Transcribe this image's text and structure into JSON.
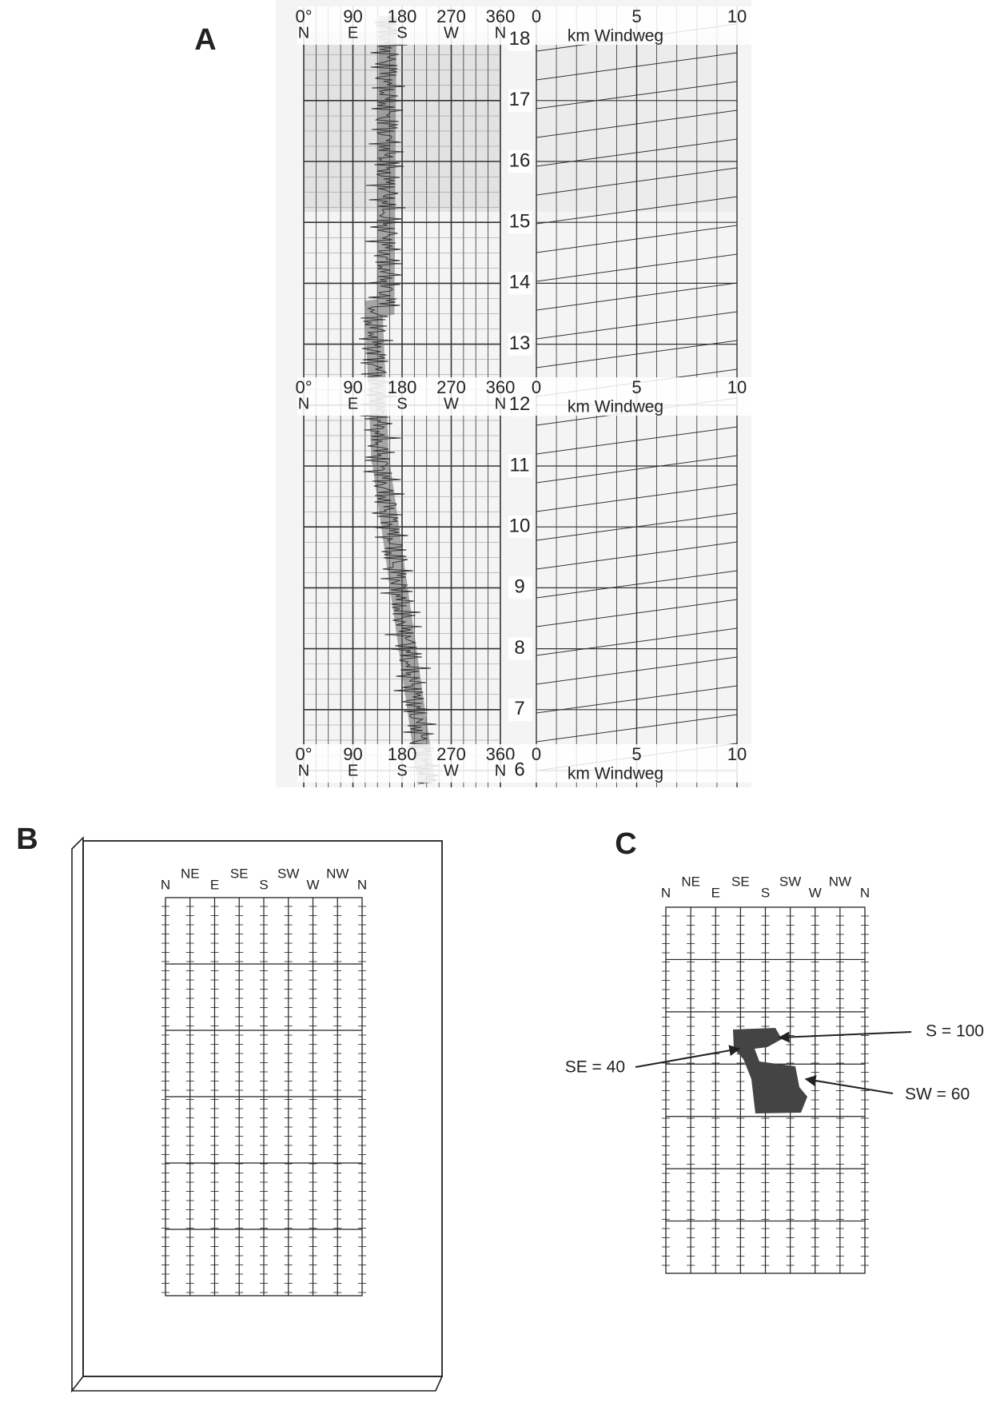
{
  "panels": {
    "A": {
      "label": "A",
      "headers": [
        {
          "degrees": [
            "0°",
            "90",
            "180",
            "270",
            "360"
          ],
          "directions": [
            "N",
            "E",
            "S",
            "W",
            "N"
          ],
          "km_ticks": [
            "0",
            "5",
            "10"
          ],
          "km_label": "km Windweg"
        },
        {
          "degrees": [
            "0°",
            "90",
            "180",
            "270",
            "360"
          ],
          "directions": [
            "N",
            "E",
            "S",
            "W",
            "N"
          ],
          "km_ticks": [
            "0",
            "5",
            "10"
          ],
          "km_label": "km Windweg"
        },
        {
          "degrees": [
            "0°",
            "90",
            "180",
            "270",
            "360"
          ],
          "directions": [
            "N",
            "E",
            "S",
            "W",
            "N"
          ],
          "km_ticks": [
            "0",
            "5",
            "10"
          ],
          "km_label": "km Windweg"
        }
      ],
      "hours": [
        "6",
        "7",
        "8",
        "9",
        "10",
        "11",
        "12",
        "13",
        "14",
        "15",
        "16",
        "17",
        "18"
      ]
    },
    "B": {
      "label": "B",
      "directions": [
        "N",
        "NE",
        "E",
        "SE",
        "S",
        "SW",
        "W",
        "NW",
        "N"
      ]
    },
    "C": {
      "label": "C",
      "directions": [
        "N",
        "NE",
        "E",
        "SE",
        "S",
        "SW",
        "W",
        "NW",
        "N"
      ],
      "annotations": [
        "S = 100",
        "SE = 40",
        "SW = 60"
      ]
    }
  }
}
